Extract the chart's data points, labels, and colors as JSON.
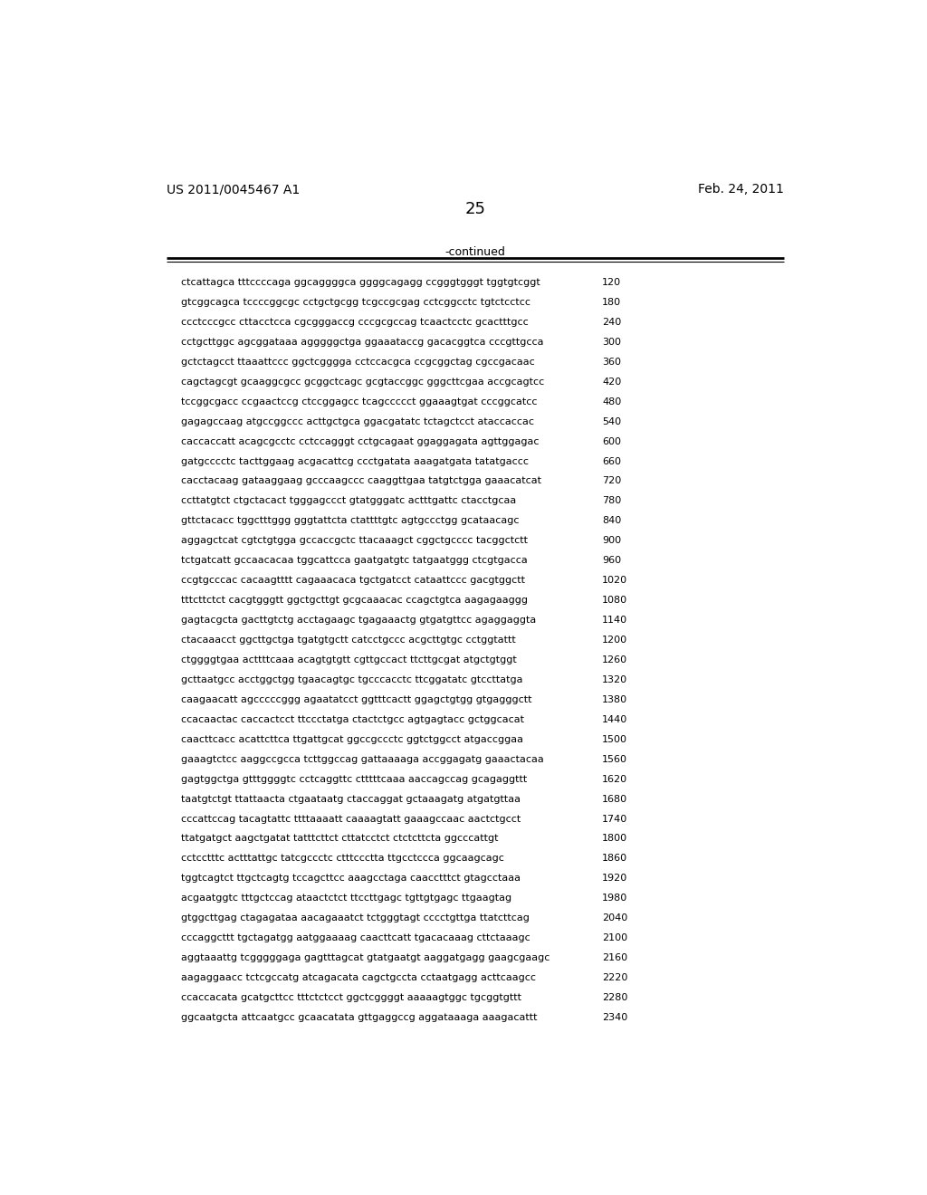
{
  "header_left": "US 2011/0045467 A1",
  "header_right": "Feb. 24, 2011",
  "page_number": "25",
  "continued_label": "-continued",
  "background_color": "#ffffff",
  "text_color": "#000000",
  "sequence_lines": [
    [
      "ctcattagca tttccccaga ggcaggggca ggggcagagg ccgggtgggt tggtgtcggt",
      "120"
    ],
    [
      "gtcggcagca tccccggcgc cctgctgcgg tcgccgcgag cctcggcctc tgtctcctcc",
      "180"
    ],
    [
      "ccctcccgcc cttacctcca cgcgggaccg cccgcgccag tcaactcctc gcactttgcc",
      "240"
    ],
    [
      "cctgcttggc agcggataaa agggggctga ggaaataccg gacacggtca cccgttgcca",
      "300"
    ],
    [
      "gctctagcct ttaaattccc ggctcgggga cctccacgca ccgcggctag cgccgacaac",
      "360"
    ],
    [
      "cagctagcgt gcaaggcgcc gcggctcagc gcgtaccggc gggcttcgaa accgcagtcc",
      "420"
    ],
    [
      "tccggcgacc ccgaactccg ctccggagcc tcagccccct ggaaagtgat cccggcatcc",
      "480"
    ],
    [
      "gagagccaag atgccggccc acttgctgca ggacgatatc tctagctcct ataccaccac",
      "540"
    ],
    [
      "caccaccatt acagcgcctc cctccagggt cctgcagaat ggaggagata agttggagac",
      "600"
    ],
    [
      "gatgcccctc tacttggaag acgacattcg ccctgatata aaagatgata tatatgaccc",
      "660"
    ],
    [
      "cacctacaag gataaggaag gcccaagccc caaggttgaa tatgtctgga gaaacatcat",
      "720"
    ],
    [
      "ccttatgtct ctgctacact tgggagccct gtatgggatc actttgattc ctacctgcaa",
      "780"
    ],
    [
      "gttctacacc tggctttggg gggtattcta ctattttgtc agtgccctgg gcataacagc",
      "840"
    ],
    [
      "aggagctcat cgtctgtgga gccaccgctc ttacaaagct cggctgcccc tacggctctt",
      "900"
    ],
    [
      "tctgatcatt gccaacacaa tggcattcca gaatgatgtc tatgaatggg ctcgtgacca",
      "960"
    ],
    [
      "ccgtgcccac cacaagtttt cagaaacaca tgctgatcct cataattccc gacgtggctt",
      "1020"
    ],
    [
      "tttcttctct cacgtgggtt ggctgcttgt gcgcaaacac ccagctgtca aagagaaggg",
      "1080"
    ],
    [
      "gagtacgcta gacttgtctg acctagaagc tgagaaactg gtgatgttcc agaggaggta",
      "1140"
    ],
    [
      "ctacaaacct ggcttgctga tgatgtgctt catcctgccc acgcttgtgc cctggtattt",
      "1200"
    ],
    [
      "ctggggtgaa acttttcaaa acagtgtgtt cgttgccact ttcttgcgat atgctgtggt",
      "1260"
    ],
    [
      "gcttaatgcc acctggctgg tgaacagtgc tgcccacctc ttcggatatc gtccttatga",
      "1320"
    ],
    [
      "caagaacatt agcccccggg agaatatcct ggtttcactt ggagctgtgg gtgagggctt",
      "1380"
    ],
    [
      "ccacaactac caccactcct ttccctatga ctactctgcc agtgagtacc gctggcacat",
      "1440"
    ],
    [
      "caacttcacc acattcttca ttgattgcat ggccgccctc ggtctggcct atgaccggaa",
      "1500"
    ],
    [
      "gaaagtctcc aaggccgcca tcttggccag gattaaaaga accggagatg gaaactacaa",
      "1560"
    ],
    [
      "gagtggctga gtttggggtc cctcaggttc ctttttcaaa aaccagccag gcagaggttt",
      "1620"
    ],
    [
      "taatgtctgt ttattaacta ctgaataatg ctaccaggat gctaaagatg atgatgttaa",
      "1680"
    ],
    [
      "cccattccag tacagtattc ttttaaaatt caaaagtatt gaaagccaac aactctgcct",
      "1740"
    ],
    [
      "ttatgatgct aagctgatat tatttcttct cttatcctct ctctcttcta ggcccattgt",
      "1800"
    ],
    [
      "cctcctttc actttattgc tatcgccctc ctttccctta ttgcctccca ggcaagcagc",
      "1860"
    ],
    [
      "tggtcagtct ttgctcagtg tccagcttcc aaagcctaga caacctttct gtagcctaaa",
      "1920"
    ],
    [
      "acgaatggtc tttgctccag ataactctct ttccttgagc tgttgtgagc ttgaagtag",
      "1980"
    ],
    [
      "gtggcttgag ctagagataa aacagaaatct tctgggtagt cccctgttga ttatcttcag",
      "2040"
    ],
    [
      "cccaggcttt tgctagatgg aatggaaaag caacttcatt tgacacaaag cttctaaagc",
      "2100"
    ],
    [
      "aggtaaattg tcgggggaga gagtttagcat gtatgaatgt aaggatgagg gaagcgaagc",
      "2160"
    ],
    [
      "aagaggaacc tctcgccatg atcagacata cagctgccta cctaatgagg acttcaagcc",
      "2220"
    ],
    [
      "ccaccacata gcatgcttcc tttctctcct ggctcggggt aaaaagtggc tgcggtgttt",
      "2280"
    ],
    [
      "ggcaatgcta attcaatgcc gcaacatata gttgaggccg aggataaaga aaagacattt",
      "2340"
    ]
  ]
}
